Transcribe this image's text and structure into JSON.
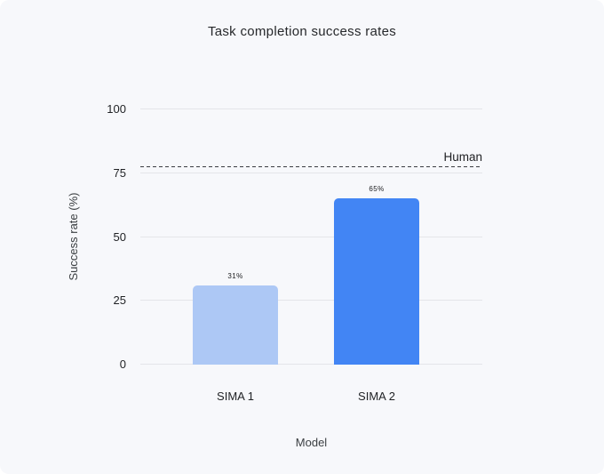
{
  "chart_data": {
    "type": "bar",
    "title": "Task completion success rates",
    "xlabel": "Model",
    "ylabel": "Success rate (%)",
    "categories": [
      "SIMA 1",
      "SIMA 2"
    ],
    "values": [
      31,
      65
    ],
    "value_labels": [
      "31%",
      "65%"
    ],
    "bar_colors": [
      "#adc8f5",
      "#4285f4"
    ],
    "ylim": [
      0,
      100
    ],
    "yticks": [
      0,
      25,
      50,
      75,
      100
    ],
    "grid": true,
    "legend": "none",
    "reference_line": {
      "label": "Human",
      "value": 77,
      "style": "dashed"
    },
    "colors": {
      "background": "#f7f8fb",
      "gridline": "#e4e5e9",
      "text": "#202124",
      "reference_line": "#3a3d42",
      "bar_sima1": "#adc8f5",
      "bar_sima2": "#4285f4"
    }
  }
}
